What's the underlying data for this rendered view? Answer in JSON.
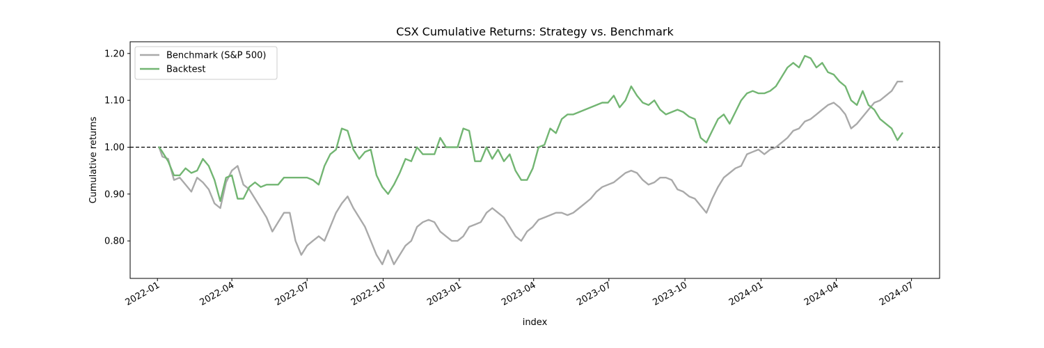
{
  "chart_data": {
    "type": "line",
    "title": "CSX Cumulative Returns: Strategy vs. Benchmark",
    "xlabel": "index",
    "ylabel": "Cumulative returns",
    "x_range": [
      "2021-11-29",
      "2024-08-04"
    ],
    "ylim": [
      0.72,
      1.225
    ],
    "y_ticks": [
      0.8,
      0.9,
      1.0,
      1.1,
      1.2
    ],
    "y_tick_labels": [
      "0.80",
      "0.90",
      "1.00",
      "1.10",
      "1.20"
    ],
    "x_ticks": [
      "2022-01-01",
      "2022-04-01",
      "2022-07-01",
      "2022-10-01",
      "2023-01-01",
      "2023-04-01",
      "2023-07-01",
      "2023-10-01",
      "2024-01-01",
      "2024-04-01",
      "2024-07-01"
    ],
    "x_tick_labels": [
      "2022-01",
      "2022-04",
      "2022-07",
      "2022-10",
      "2023-01",
      "2023-04",
      "2023-07",
      "2023-10",
      "2024-01",
      "2024-04",
      "2024-07"
    ],
    "reference_line": {
      "y": 1.0,
      "style": "dashed",
      "color": "#000000"
    },
    "legend_position": "top-left",
    "grid": false,
    "series": [
      {
        "name": "Benchmark (S&P 500)",
        "color": "#a9a9a9",
        "points": [
          [
            "2022-01-03",
            1.0
          ],
          [
            "2022-01-07",
            0.98
          ],
          [
            "2022-01-14",
            0.975
          ],
          [
            "2022-01-21",
            0.93
          ],
          [
            "2022-01-28",
            0.935
          ],
          [
            "2022-02-04",
            0.92
          ],
          [
            "2022-02-11",
            0.905
          ],
          [
            "2022-02-18",
            0.935
          ],
          [
            "2022-02-25",
            0.925
          ],
          [
            "2022-03-04",
            0.91
          ],
          [
            "2022-03-11",
            0.88
          ],
          [
            "2022-03-18",
            0.87
          ],
          [
            "2022-03-25",
            0.925
          ],
          [
            "2022-04-01",
            0.95
          ],
          [
            "2022-04-08",
            0.96
          ],
          [
            "2022-04-15",
            0.92
          ],
          [
            "2022-04-22",
            0.91
          ],
          [
            "2022-04-29",
            0.89
          ],
          [
            "2022-05-06",
            0.87
          ],
          [
            "2022-05-13",
            0.85
          ],
          [
            "2022-05-20",
            0.82
          ],
          [
            "2022-05-27",
            0.84
          ],
          [
            "2022-06-03",
            0.86
          ],
          [
            "2022-06-10",
            0.86
          ],
          [
            "2022-06-17",
            0.8
          ],
          [
            "2022-06-24",
            0.77
          ],
          [
            "2022-07-01",
            0.79
          ],
          [
            "2022-07-08",
            0.8
          ],
          [
            "2022-07-15",
            0.81
          ],
          [
            "2022-07-22",
            0.8
          ],
          [
            "2022-07-29",
            0.83
          ],
          [
            "2022-08-05",
            0.86
          ],
          [
            "2022-08-12",
            0.88
          ],
          [
            "2022-08-19",
            0.895
          ],
          [
            "2022-08-26",
            0.87
          ],
          [
            "2022-09-02",
            0.85
          ],
          [
            "2022-09-09",
            0.83
          ],
          [
            "2022-09-16",
            0.8
          ],
          [
            "2022-09-23",
            0.77
          ],
          [
            "2022-09-30",
            0.75
          ],
          [
            "2022-10-07",
            0.78
          ],
          [
            "2022-10-14",
            0.75
          ],
          [
            "2022-10-21",
            0.77
          ],
          [
            "2022-10-28",
            0.79
          ],
          [
            "2022-11-04",
            0.8
          ],
          [
            "2022-11-11",
            0.83
          ],
          [
            "2022-11-18",
            0.84
          ],
          [
            "2022-11-25",
            0.845
          ],
          [
            "2022-12-02",
            0.84
          ],
          [
            "2022-12-09",
            0.82
          ],
          [
            "2022-12-16",
            0.81
          ],
          [
            "2022-12-23",
            0.8
          ],
          [
            "2022-12-30",
            0.8
          ],
          [
            "2023-01-06",
            0.81
          ],
          [
            "2023-01-13",
            0.83
          ],
          [
            "2023-01-20",
            0.835
          ],
          [
            "2023-01-27",
            0.84
          ],
          [
            "2023-02-03",
            0.86
          ],
          [
            "2023-02-10",
            0.87
          ],
          [
            "2023-02-17",
            0.86
          ],
          [
            "2023-02-24",
            0.85
          ],
          [
            "2023-03-03",
            0.83
          ],
          [
            "2023-03-10",
            0.81
          ],
          [
            "2023-03-17",
            0.8
          ],
          [
            "2023-03-24",
            0.82
          ],
          [
            "2023-03-31",
            0.83
          ],
          [
            "2023-04-07",
            0.845
          ],
          [
            "2023-04-14",
            0.85
          ],
          [
            "2023-04-21",
            0.855
          ],
          [
            "2023-04-28",
            0.86
          ],
          [
            "2023-05-05",
            0.86
          ],
          [
            "2023-05-12",
            0.855
          ],
          [
            "2023-05-19",
            0.86
          ],
          [
            "2023-05-26",
            0.87
          ],
          [
            "2023-06-02",
            0.88
          ],
          [
            "2023-06-09",
            0.89
          ],
          [
            "2023-06-16",
            0.905
          ],
          [
            "2023-06-23",
            0.915
          ],
          [
            "2023-06-30",
            0.92
          ],
          [
            "2023-07-07",
            0.925
          ],
          [
            "2023-07-14",
            0.935
          ],
          [
            "2023-07-21",
            0.945
          ],
          [
            "2023-07-28",
            0.95
          ],
          [
            "2023-08-04",
            0.945
          ],
          [
            "2023-08-11",
            0.93
          ],
          [
            "2023-08-18",
            0.92
          ],
          [
            "2023-08-25",
            0.925
          ],
          [
            "2023-09-01",
            0.935
          ],
          [
            "2023-09-08",
            0.935
          ],
          [
            "2023-09-15",
            0.93
          ],
          [
            "2023-09-22",
            0.91
          ],
          [
            "2023-09-29",
            0.905
          ],
          [
            "2023-10-06",
            0.895
          ],
          [
            "2023-10-13",
            0.89
          ],
          [
            "2023-10-20",
            0.875
          ],
          [
            "2023-10-27",
            0.86
          ],
          [
            "2023-11-03",
            0.89
          ],
          [
            "2023-11-10",
            0.915
          ],
          [
            "2023-11-17",
            0.935
          ],
          [
            "2023-11-24",
            0.945
          ],
          [
            "2023-12-01",
            0.955
          ],
          [
            "2023-12-08",
            0.96
          ],
          [
            "2023-12-15",
            0.985
          ],
          [
            "2023-12-22",
            0.99
          ],
          [
            "2023-12-29",
            0.995
          ],
          [
            "2024-01-05",
            0.985
          ],
          [
            "2024-01-12",
            0.995
          ],
          [
            "2024-01-19",
            1.0
          ],
          [
            "2024-01-26",
            1.01
          ],
          [
            "2024-02-02",
            1.02
          ],
          [
            "2024-02-09",
            1.035
          ],
          [
            "2024-02-16",
            1.04
          ],
          [
            "2024-02-23",
            1.055
          ],
          [
            "2024-03-01",
            1.06
          ],
          [
            "2024-03-08",
            1.07
          ],
          [
            "2024-03-15",
            1.08
          ],
          [
            "2024-03-22",
            1.09
          ],
          [
            "2024-03-29",
            1.095
          ],
          [
            "2024-04-05",
            1.085
          ],
          [
            "2024-04-12",
            1.07
          ],
          [
            "2024-04-19",
            1.04
          ],
          [
            "2024-04-26",
            1.05
          ],
          [
            "2024-05-03",
            1.065
          ],
          [
            "2024-05-10",
            1.08
          ],
          [
            "2024-05-17",
            1.095
          ],
          [
            "2024-05-24",
            1.1
          ],
          [
            "2024-05-31",
            1.11
          ],
          [
            "2024-06-07",
            1.12
          ],
          [
            "2024-06-14",
            1.14
          ],
          [
            "2024-06-20",
            1.14
          ]
        ]
      },
      {
        "name": "Backtest",
        "color": "#72b572",
        "points": [
          [
            "2022-01-03",
            1.0
          ],
          [
            "2022-01-07",
            0.99
          ],
          [
            "2022-01-14",
            0.97
          ],
          [
            "2022-01-21",
            0.94
          ],
          [
            "2022-01-28",
            0.94
          ],
          [
            "2022-02-04",
            0.955
          ],
          [
            "2022-02-11",
            0.945
          ],
          [
            "2022-02-18",
            0.95
          ],
          [
            "2022-02-25",
            0.975
          ],
          [
            "2022-03-04",
            0.96
          ],
          [
            "2022-03-11",
            0.93
          ],
          [
            "2022-03-18",
            0.885
          ],
          [
            "2022-03-25",
            0.935
          ],
          [
            "2022-04-01",
            0.94
          ],
          [
            "2022-04-08",
            0.89
          ],
          [
            "2022-04-15",
            0.89
          ],
          [
            "2022-04-22",
            0.915
          ],
          [
            "2022-04-29",
            0.925
          ],
          [
            "2022-05-06",
            0.915
          ],
          [
            "2022-05-13",
            0.92
          ],
          [
            "2022-05-20",
            0.92
          ],
          [
            "2022-05-27",
            0.92
          ],
          [
            "2022-06-03",
            0.935
          ],
          [
            "2022-06-10",
            0.935
          ],
          [
            "2022-06-17",
            0.935
          ],
          [
            "2022-06-24",
            0.935
          ],
          [
            "2022-07-01",
            0.935
          ],
          [
            "2022-07-08",
            0.93
          ],
          [
            "2022-07-15",
            0.92
          ],
          [
            "2022-07-22",
            0.96
          ],
          [
            "2022-07-29",
            0.985
          ],
          [
            "2022-08-05",
            0.995
          ],
          [
            "2022-08-12",
            1.04
          ],
          [
            "2022-08-19",
            1.035
          ],
          [
            "2022-08-26",
            0.995
          ],
          [
            "2022-09-02",
            0.975
          ],
          [
            "2022-09-09",
            0.99
          ],
          [
            "2022-09-16",
            0.995
          ],
          [
            "2022-09-23",
            0.94
          ],
          [
            "2022-09-30",
            0.915
          ],
          [
            "2022-10-07",
            0.9
          ],
          [
            "2022-10-14",
            0.92
          ],
          [
            "2022-10-21",
            0.945
          ],
          [
            "2022-10-28",
            0.975
          ],
          [
            "2022-11-04",
            0.97
          ],
          [
            "2022-11-11",
            1.0
          ],
          [
            "2022-11-18",
            0.985
          ],
          [
            "2022-11-25",
            0.985
          ],
          [
            "2022-12-02",
            0.985
          ],
          [
            "2022-12-09",
            1.02
          ],
          [
            "2022-12-16",
            1.0
          ],
          [
            "2022-12-23",
            1.0
          ],
          [
            "2022-12-30",
            1.0
          ],
          [
            "2023-01-06",
            1.04
          ],
          [
            "2023-01-13",
            1.035
          ],
          [
            "2023-01-20",
            0.97
          ],
          [
            "2023-01-27",
            0.97
          ],
          [
            "2023-02-03",
            1.0
          ],
          [
            "2023-02-10",
            0.975
          ],
          [
            "2023-02-17",
            0.995
          ],
          [
            "2023-02-24",
            0.97
          ],
          [
            "2023-03-03",
            0.985
          ],
          [
            "2023-03-10",
            0.95
          ],
          [
            "2023-03-17",
            0.93
          ],
          [
            "2023-03-24",
            0.93
          ],
          [
            "2023-03-31",
            0.955
          ],
          [
            "2023-04-07",
            1.0
          ],
          [
            "2023-04-14",
            1.005
          ],
          [
            "2023-04-21",
            1.04
          ],
          [
            "2023-04-28",
            1.03
          ],
          [
            "2023-05-05",
            1.06
          ],
          [
            "2023-05-12",
            1.07
          ],
          [
            "2023-05-19",
            1.07
          ],
          [
            "2023-05-26",
            1.075
          ],
          [
            "2023-06-02",
            1.08
          ],
          [
            "2023-06-09",
            1.085
          ],
          [
            "2023-06-16",
            1.09
          ],
          [
            "2023-06-23",
            1.095
          ],
          [
            "2023-06-30",
            1.095
          ],
          [
            "2023-07-07",
            1.11
          ],
          [
            "2023-07-14",
            1.085
          ],
          [
            "2023-07-21",
            1.1
          ],
          [
            "2023-07-28",
            1.13
          ],
          [
            "2023-08-04",
            1.11
          ],
          [
            "2023-08-11",
            1.095
          ],
          [
            "2023-08-18",
            1.09
          ],
          [
            "2023-08-25",
            1.1
          ],
          [
            "2023-09-01",
            1.08
          ],
          [
            "2023-09-08",
            1.07
          ],
          [
            "2023-09-15",
            1.075
          ],
          [
            "2023-09-22",
            1.08
          ],
          [
            "2023-09-29",
            1.075
          ],
          [
            "2023-10-06",
            1.065
          ],
          [
            "2023-10-13",
            1.06
          ],
          [
            "2023-10-20",
            1.02
          ],
          [
            "2023-10-27",
            1.01
          ],
          [
            "2023-11-03",
            1.035
          ],
          [
            "2023-11-10",
            1.06
          ],
          [
            "2023-11-17",
            1.07
          ],
          [
            "2023-11-24",
            1.05
          ],
          [
            "2023-12-01",
            1.075
          ],
          [
            "2023-12-08",
            1.1
          ],
          [
            "2023-12-15",
            1.115
          ],
          [
            "2023-12-22",
            1.12
          ],
          [
            "2023-12-29",
            1.115
          ],
          [
            "2024-01-05",
            1.115
          ],
          [
            "2024-01-12",
            1.12
          ],
          [
            "2024-01-19",
            1.13
          ],
          [
            "2024-01-26",
            1.15
          ],
          [
            "2024-02-02",
            1.17
          ],
          [
            "2024-02-09",
            1.18
          ],
          [
            "2024-02-16",
            1.17
          ],
          [
            "2024-02-23",
            1.195
          ],
          [
            "2024-03-01",
            1.19
          ],
          [
            "2024-03-08",
            1.17
          ],
          [
            "2024-03-15",
            1.18
          ],
          [
            "2024-03-22",
            1.16
          ],
          [
            "2024-03-29",
            1.155
          ],
          [
            "2024-04-05",
            1.14
          ],
          [
            "2024-04-12",
            1.13
          ],
          [
            "2024-04-19",
            1.1
          ],
          [
            "2024-04-26",
            1.09
          ],
          [
            "2024-05-03",
            1.12
          ],
          [
            "2024-05-10",
            1.09
          ],
          [
            "2024-05-17",
            1.08
          ],
          [
            "2024-05-24",
            1.06
          ],
          [
            "2024-05-31",
            1.05
          ],
          [
            "2024-06-07",
            1.04
          ],
          [
            "2024-06-14",
            1.015
          ],
          [
            "2024-06-20",
            1.03
          ]
        ]
      }
    ]
  }
}
